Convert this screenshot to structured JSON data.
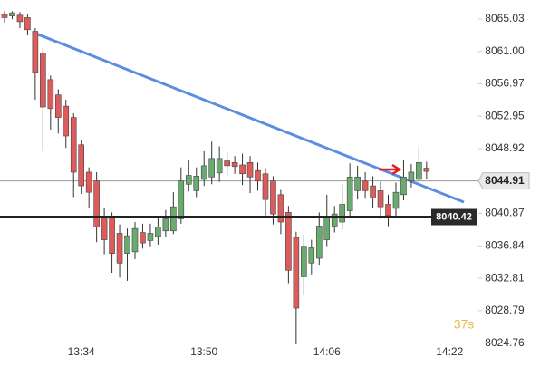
{
  "chart_data": {
    "type": "candlestick",
    "categories": [
      null,
      null,
      null,
      null,
      null,
      null,
      null,
      null,
      null,
      null,
      "13:34",
      null,
      null,
      null,
      null,
      null,
      null,
      null,
      null,
      null,
      null,
      null,
      null,
      null,
      null,
      null,
      "13:50",
      null,
      null,
      null,
      null,
      null,
      null,
      null,
      null,
      null,
      null,
      null,
      null,
      null,
      null,
      null,
      "14:06",
      null,
      null,
      null,
      null,
      null,
      null,
      null,
      null,
      null,
      null,
      null,
      null,
      null,
      null,
      null,
      "14:22"
    ],
    "open": [
      8065.6,
      8065.4,
      8065.5,
      8065.2,
      8063.5,
      8060.8,
      8057.5,
      8055.6,
      8054.2,
      8052.8,
      8049.4,
      8046,
      8044.9,
      8040.4,
      8040.4,
      8038.4,
      8035.9,
      8036.1,
      8038.5,
      8037.5,
      8038,
      8038.7,
      8038.7,
      8040.2,
      8044.5,
      8043.7,
      8045.1,
      8045.4,
      8045.9,
      8047.4,
      8047.2,
      8046.9,
      8047.2,
      8046.2,
      8045.8,
      8044.9,
      8043.2,
      8041,
      8037.9,
      8033,
      8034.7,
      8035.3,
      8037.6,
      8039.3,
      8039.8,
      8041.2,
      8043.7,
      8044.9,
      8044.3,
      8043.7,
      8042,
      8041.5,
      8043.2,
      8044.9,
      8045.1,
      8046.5,
      null,
      null,
      null
    ],
    "high": [
      8066,
      8066,
      8065.9,
      8065.6,
      8063.9,
      8061.5,
      8058,
      8056.3,
      8055,
      8053.3,
      8050,
      8046.6,
      8046,
      8041.5,
      8041,
      8039.5,
      8039,
      8039.8,
      8039.6,
      8039.6,
      8040.4,
      8041.3,
      8043.5,
      8046.6,
      8047.5,
      8046.6,
      8048.6,
      8049.8,
      8049.2,
      8048.4,
      8048,
      8048.3,
      8048,
      8047.2,
      8046.5,
      8045.5,
      8043.8,
      8041.8,
      8038.6,
      8038.2,
      8037.6,
      8041,
      8043.2,
      8041.8,
      8044.5,
      8047.1,
      8046.8,
      8046,
      8045.5,
      8044.8,
      8043.2,
      8044.7,
      8047.5,
      8047,
      8049.2,
      8047.3,
      null,
      null,
      null
    ],
    "low": [
      8064.6,
      8065,
      8063.9,
      8063,
      8055,
      8048.6,
      8051.3,
      8050.8,
      8049,
      8042.9,
      8043.3,
      8041.6,
      8037.3,
      8035.8,
      8033.5,
      8032.9,
      8032.5,
      8035.2,
      8036.5,
      8036.8,
      8037,
      8037.9,
      8038.3,
      8039.6,
      8043.6,
      8042.9,
      8044.3,
      8044.5,
      8044.8,
      8045.6,
      8045.8,
      8044.4,
      8043.4,
      8043.7,
      8040.6,
      8039.5,
      8038.3,
      8032.2,
      8024.6,
      8030.8,
      8033.3,
      8034.5,
      8036.8,
      8038.5,
      8038.9,
      8040.5,
      8042.6,
      8042.7,
      8041.5,
      8040.2,
      8039.3,
      8040.5,
      8042.5,
      8044.1,
      8044.6,
      8045.2,
      null,
      null,
      null
    ],
    "close": [
      8065.2,
      8065.8,
      8064.7,
      8063.7,
      8058.4,
      8054.1,
      8053.9,
      8052.8,
      8050.5,
      8046,
      8044.3,
      8043.5,
      8039.2,
      8037.6,
      8035.9,
      8034.7,
      8038.1,
      8039,
      8037.2,
      8038.4,
      8039.2,
      8040.2,
      8041.7,
      8044.9,
      8045.6,
      8045.5,
      8046.8,
      8047.7,
      8047.7,
      8046.8,
      8046.7,
      8045.8,
      8045.4,
      8044.9,
      8042.6,
      8040.8,
      8039.8,
      8033.8,
      8029.1,
      8036.8,
      8036.6,
      8039.3,
      8040.4,
      8040.8,
      8042,
      8045.4,
      8045.4,
      8043.7,
      8042.8,
      8041.7,
      8040.6,
      8043.5,
      8045.4,
      8046,
      8047.2,
      8046.1,
      null,
      null,
      null
    ],
    "up_color": "#6aaa6e",
    "down_color": "#de5b5b",
    "ylim": [
      8024.49,
      8067.39
    ],
    "yticks": [
      8065.03,
      {
        "value": 8061,
        "label": "8061.00"
      },
      8056.97,
      8052.95,
      8048.92,
      8040.87,
      8036.84,
      8032.81,
      8028.79,
      8024.76
    ],
    "current_price": 8044.91,
    "level": 8040.42,
    "timer": "37s"
  }
}
